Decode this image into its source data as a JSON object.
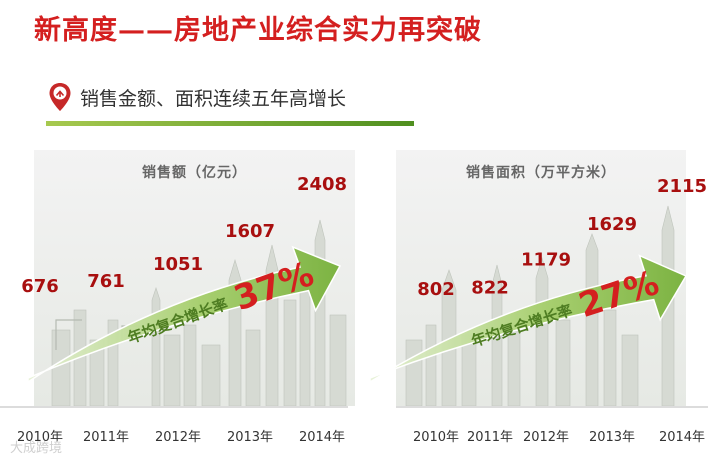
{
  "title": "新高度——房地产业综合实力再突破",
  "subtitle": "销售金额、面积连续五年高增长",
  "colors": {
    "title": "#d41f1f",
    "value": "#a80f0f",
    "arrow": "#7cb342",
    "rule": "#6a9f2a",
    "axis_text": "#333333"
  },
  "chart_data": [
    {
      "type": "bar",
      "title": "销售额（亿元）",
      "categories": [
        "2010年",
        "2011年",
        "2012年",
        "2013年",
        "2014年"
      ],
      "values": [
        676,
        761,
        1051,
        1607,
        2408
      ],
      "arrow_label": "年均复合增长率",
      "growth_rate": "37%"
    },
    {
      "type": "bar",
      "title": "销售面积（万平方米）",
      "categories": [
        "2010年",
        "2011年",
        "2012年",
        "2013年",
        "2014年"
      ],
      "values": [
        802,
        822,
        1179,
        1629,
        2115
      ],
      "arrow_label": "年均复合增长率",
      "growth_rate": "27%"
    }
  ],
  "watermark": "大成跨境",
  "icons": {
    "pin": "location-pin-icon"
  }
}
